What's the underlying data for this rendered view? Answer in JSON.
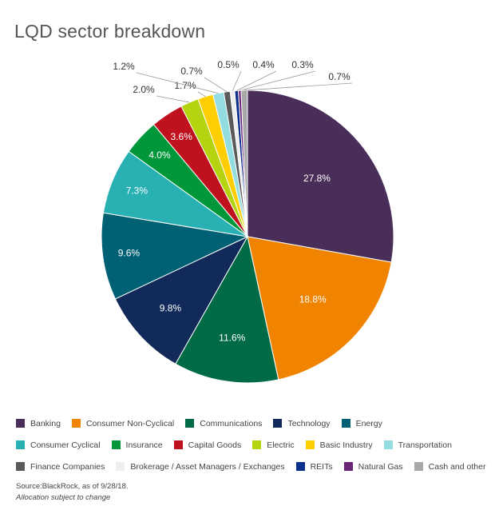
{
  "page": {
    "title": "LQD sector breakdown"
  },
  "chart_data": {
    "type": "pie",
    "title": "LQD sector breakdown",
    "slices": [
      {
        "label": "Banking",
        "value": 27.8,
        "display": "27.8%",
        "color": "#4a2e5a"
      },
      {
        "label": "Consumer Non-Cyclical",
        "value": 18.8,
        "display": "18.8%",
        "color": "#f08300"
      },
      {
        "label": "Communications",
        "value": 11.6,
        "display": "11.6%",
        "color": "#006b45"
      },
      {
        "label": "Technology",
        "value": 9.8,
        "display": "9.8%",
        "color": "#122a5a"
      },
      {
        "label": "Energy",
        "value": 9.6,
        "display": "9.6%",
        "color": "#006174"
      },
      {
        "label": "Consumer Cyclical",
        "value": 7.3,
        "display": "7.3%",
        "color": "#29b0b3"
      },
      {
        "label": "Insurance",
        "value": 4.0,
        "display": "4.0%",
        "color": "#00973a"
      },
      {
        "label": "Capital Goods",
        "value": 3.6,
        "display": "3.6%",
        "color": "#c0111f"
      },
      {
        "label": "Electric",
        "value": 2.0,
        "display": "2.0%",
        "color": "#b5d40f"
      },
      {
        "label": "Basic Industry",
        "value": 1.7,
        "display": "1.7%",
        "color": "#ffce00"
      },
      {
        "label": "Transportation",
        "value": 1.2,
        "display": "1.2%",
        "color": "#93dde0"
      },
      {
        "label": "Finance Companies",
        "value": 0.7,
        "display": "0.7%",
        "color": "#5a5a5a"
      },
      {
        "label": "Brokerage / Asset Managers / Exchanges",
        "value": 0.5,
        "display": "0.5%",
        "color": "#eeeeee"
      },
      {
        "label": "REITs",
        "value": 0.4,
        "display": "0.4%",
        "color": "#0c2f8c"
      },
      {
        "label": "Natural Gas",
        "value": 0.3,
        "display": "0.3%",
        "color": "#6a2577"
      },
      {
        "label": "Cash and other",
        "value": 0.7,
        "display": "0.7%",
        "color": "#a8a8a8"
      }
    ],
    "legend_placement": "bottom",
    "legend_rows": [
      [
        "Banking",
        "Consumer Non-Cyclical",
        "Communications",
        "Technology",
        "Energy"
      ],
      [
        "Consumer Cyclical",
        "Insurance",
        "Capital Goods",
        "Electric",
        "Basic Industry",
        "Transportation"
      ],
      [
        "Finance Companies",
        "Brokerage / Asset Managers / Exchanges",
        "REITs",
        "Natural Gas",
        "Cash and other"
      ]
    ]
  },
  "footer": {
    "source": "Source:BlackRock, as of 9/28/18.",
    "note": "Allocation subject to change"
  }
}
